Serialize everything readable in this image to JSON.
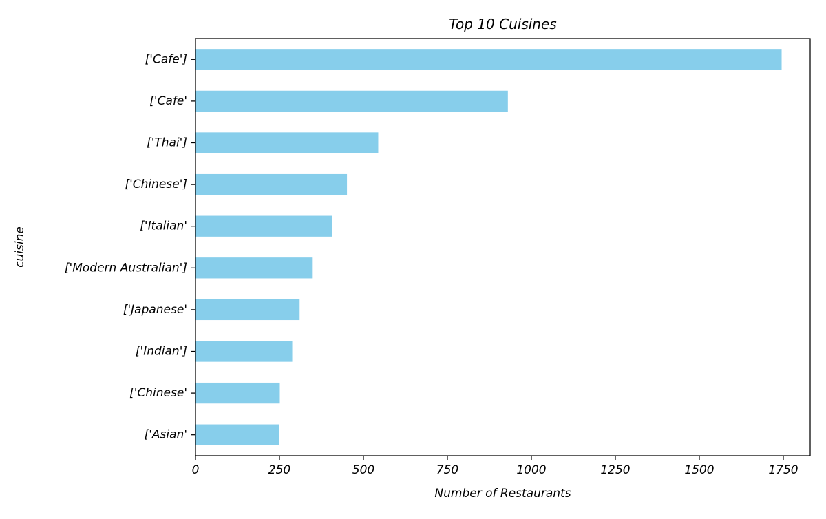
{
  "chart_data": {
    "type": "bar",
    "orientation": "horizontal",
    "title": "Top 10 Cuisines",
    "xlabel": "Number of Restaurants",
    "ylabel": "cuisine",
    "categories": [
      "['Cafe']",
      "['Cafe'",
      "['Thai']",
      "['Chinese']",
      "['Italian'",
      "['Modern Australian']",
      "['Japanese'",
      "['Indian']",
      "['Chinese'",
      "['Asian'"
    ],
    "values": [
      1745,
      930,
      544,
      451,
      406,
      347,
      310,
      288,
      251,
      249
    ],
    "xlim": [
      0,
      1830
    ],
    "xticks": [
      0,
      250,
      500,
      750,
      1000,
      1250,
      1500,
      1750
    ],
    "bar_color": "#87ceeb",
    "grid": false,
    "legend": "none"
  }
}
